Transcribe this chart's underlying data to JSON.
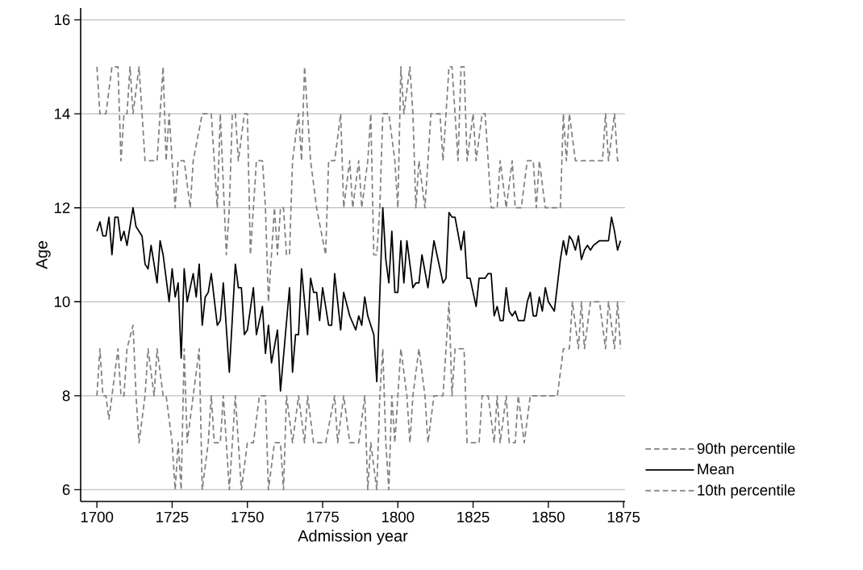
{
  "chart_data": {
    "type": "line",
    "xlabel": "Admission year",
    "ylabel": "Age",
    "xlim": [
      1694.6,
      1875.5
    ],
    "ylim": [
      5.75,
      16.25
    ],
    "xticks": [
      1700,
      1725,
      1750,
      1775,
      1800,
      1825,
      1850,
      1875
    ],
    "yticks": [
      6,
      8,
      10,
      12,
      14,
      16
    ],
    "grid": "y",
    "legend": "bottom right",
    "series": [
      {
        "name": "90th percentile",
        "color": "#808080",
        "line_style": "dashed",
        "x": [
          1700,
          1701,
          1702,
          1703,
          1705,
          1707,
          1708,
          1709,
          1710,
          1711,
          1712,
          1714,
          1715,
          1716,
          1718,
          1720,
          1721,
          1722,
          1723,
          1724,
          1725,
          1726,
          1727,
          1729,
          1731,
          1732,
          1735,
          1736,
          1738,
          1740,
          1741,
          1743,
          1744,
          1745,
          1746,
          1747,
          1749,
          1750,
          1751,
          1753,
          1755,
          1756,
          1757,
          1759,
          1760,
          1761,
          1762,
          1763,
          1764,
          1765,
          1767,
          1768,
          1769,
          1770,
          1771,
          1773,
          1776,
          1777,
          1779,
          1781,
          1782,
          1784,
          1785,
          1787,
          1788,
          1790,
          1791,
          1792,
          1793,
          1794,
          1795,
          1797,
          1799,
          1800,
          1801,
          1802,
          1804,
          1805,
          1806,
          1807,
          1809,
          1811,
          1812,
          1814,
          1815,
          1817,
          1818,
          1820,
          1821,
          1822,
          1823,
          1825,
          1826,
          1828,
          1829,
          1830,
          1831,
          1833,
          1834,
          1836,
          1838,
          1839,
          1841,
          1843,
          1845,
          1846,
          1847,
          1849,
          1852,
          1854,
          1855,
          1856,
          1857,
          1859,
          1861,
          1864,
          1865,
          1868,
          1869,
          1870,
          1872,
          1873,
          1874
        ],
        "values": [
          15,
          14,
          14,
          14,
          15,
          15,
          13,
          14,
          14,
          15,
          14,
          15,
          14,
          13,
          13,
          13,
          14,
          15,
          13,
          14,
          13,
          12,
          13,
          13,
          12,
          13,
          14,
          14,
          14,
          12,
          14,
          11,
          12,
          14,
          14,
          13,
          14,
          14,
          11,
          13,
          13,
          12,
          10,
          12,
          11,
          12,
          12,
          11,
          11,
          13,
          14,
          13,
          15,
          14,
          13,
          12,
          11,
          13,
          13,
          14,
          12,
          13,
          12,
          13,
          12,
          13,
          14,
          11,
          11,
          12,
          14,
          14,
          13,
          12,
          15,
          14,
          15,
          14,
          12,
          13,
          12,
          14,
          14,
          14,
          13,
          15,
          15,
          13,
          15,
          15,
          13,
          14,
          13,
          14,
          14,
          13,
          12,
          12,
          13,
          12,
          13,
          12,
          12,
          13,
          13,
          12,
          13,
          12,
          12,
          12,
          14,
          13,
          14,
          13,
          13,
          13,
          13,
          13,
          14,
          13,
          14,
          13,
          13
        ]
      },
      {
        "name": "Mean",
        "color": "#000000",
        "line_style": "solid",
        "x": [
          1700,
          1701,
          1702,
          1703,
          1704,
          1705,
          1706,
          1707,
          1708,
          1709,
          1710,
          1712,
          1713,
          1715,
          1716,
          1717,
          1718,
          1720,
          1721,
          1722,
          1724,
          1725,
          1726,
          1727,
          1728,
          1729,
          1730,
          1732,
          1733,
          1734,
          1735,
          1736,
          1737,
          1738,
          1740,
          1741,
          1742,
          1744,
          1746,
          1747,
          1748,
          1749,
          1750,
          1752,
          1753,
          1755,
          1756,
          1757,
          1758,
          1760,
          1761,
          1764,
          1765,
          1766,
          1767,
          1768,
          1770,
          1771,
          1772,
          1773,
          1774,
          1775,
          1777,
          1778,
          1779,
          1781,
          1782,
          1784,
          1786,
          1787,
          1788,
          1789,
          1790,
          1792,
          1793,
          1795,
          1796,
          1797,
          1798,
          1799,
          1800,
          1801,
          1802,
          1803,
          1805,
          1806,
          1807,
          1808,
          1810,
          1812,
          1815,
          1816,
          1817,
          1818,
          1819,
          1821,
          1822,
          1823,
          1824,
          1826,
          1827,
          1828,
          1829,
          1830,
          1831,
          1832,
          1833,
          1834,
          1835,
          1836,
          1837,
          1838,
          1839,
          1840,
          1842,
          1843,
          1844,
          1845,
          1846,
          1847,
          1848,
          1849,
          1850,
          1852,
          1854,
          1855,
          1856,
          1857,
          1858,
          1859,
          1860,
          1861,
          1862,
          1863,
          1864,
          1865,
          1867,
          1868,
          1869,
          1870,
          1871,
          1872,
          1873,
          1874
        ],
        "values": [
          11.5,
          11.7,
          11.4,
          11.4,
          11.8,
          11.0,
          11.8,
          11.8,
          11.3,
          11.5,
          11.2,
          12.0,
          11.6,
          11.4,
          10.8,
          10.7,
          11.2,
          10.4,
          11.3,
          11.0,
          10.0,
          10.7,
          10.1,
          10.4,
          8.8,
          10.7,
          10.0,
          10.6,
          10.1,
          10.8,
          9.5,
          10.1,
          10.2,
          10.6,
          9.5,
          9.6,
          10.4,
          8.5,
          10.8,
          10.3,
          10.3,
          9.3,
          9.4,
          10.3,
          9.3,
          9.9,
          8.9,
          9.5,
          8.7,
          9.4,
          8.1,
          10.3,
          8.5,
          9.3,
          9.3,
          10.7,
          9.3,
          10.5,
          10.2,
          10.2,
          9.6,
          10.3,
          9.5,
          9.5,
          10.6,
          9.4,
          10.2,
          9.7,
          9.4,
          9.7,
          9.5,
          10.1,
          9.7,
          9.3,
          8.3,
          12.0,
          10.9,
          10.4,
          11.5,
          10.2,
          10.2,
          11.3,
          10.4,
          11.3,
          10.3,
          10.4,
          10.4,
          11.0,
          10.3,
          11.3,
          10.4,
          10.5,
          11.9,
          11.8,
          11.8,
          11.1,
          11.5,
          10.5,
          10.5,
          9.9,
          10.5,
          10.5,
          10.5,
          10.6,
          10.6,
          9.7,
          9.9,
          9.6,
          9.6,
          10.3,
          9.8,
          9.7,
          9.8,
          9.6,
          9.6,
          10.0,
          10.2,
          9.7,
          9.7,
          10.1,
          9.8,
          10.3,
          10.0,
          9.8,
          10.9,
          11.3,
          11.0,
          11.4,
          11.3,
          11.1,
          11.4,
          10.9,
          11.1,
          11.2,
          11.1,
          11.2,
          11.3,
          11.3,
          11.3,
          11.3,
          11.8,
          11.5,
          11.1,
          11.3
        ]
      },
      {
        "name": "10th percentile",
        "color": "#808080",
        "line_style": "dashed",
        "x": [
          1700,
          1701,
          1702,
          1703,
          1704,
          1705,
          1707,
          1708,
          1709,
          1710,
          1712,
          1713,
          1714,
          1716,
          1717,
          1719,
          1720,
          1722,
          1723,
          1725,
          1726,
          1727,
          1728,
          1729,
          1730,
          1732,
          1734,
          1735,
          1737,
          1738,
          1739,
          1741,
          1742,
          1744,
          1745,
          1746,
          1747,
          1748,
          1750,
          1752,
          1754,
          1756,
          1757,
          1759,
          1761,
          1762,
          1763,
          1765,
          1767,
          1769,
          1770,
          1772,
          1774,
          1776,
          1779,
          1780,
          1782,
          1784,
          1787,
          1789,
          1790,
          1791,
          1793,
          1794,
          1795,
          1796,
          1797,
          1798,
          1799,
          1801,
          1803,
          1804,
          1805,
          1807,
          1809,
          1810,
          1812,
          1815,
          1817,
          1818,
          1819,
          1821,
          1822,
          1823,
          1825,
          1827,
          1828,
          1830,
          1832,
          1833,
          1834,
          1836,
          1837,
          1839,
          1840,
          1842,
          1844,
          1847,
          1851,
          1853,
          1855,
          1857,
          1858,
          1860,
          1861,
          1862,
          1864,
          1867,
          1869,
          1870,
          1872,
          1873,
          1874
        ],
        "values": [
          8,
          9,
          8,
          8,
          7.5,
          8,
          9,
          8,
          8,
          9,
          9.5,
          8,
          7,
          8,
          9,
          8,
          9,
          8,
          8,
          7,
          6,
          7,
          6,
          9,
          7,
          8,
          9,
          6,
          7,
          8,
          7,
          7,
          8,
          6,
          7,
          8,
          7,
          6,
          7,
          7,
          8,
          8,
          6,
          7,
          7,
          6,
          8,
          7,
          8,
          7,
          8,
          7,
          7,
          7,
          8,
          7,
          8,
          7,
          7,
          8,
          6,
          7,
          6,
          8,
          9,
          7,
          6,
          8,
          7,
          9,
          8,
          7,
          8,
          9,
          8,
          7,
          8,
          8,
          10,
          8,
          9,
          9,
          9,
          7,
          7,
          7,
          8,
          8,
          7,
          8,
          7,
          8,
          7,
          7,
          8,
          7,
          8,
          8,
          8,
          8,
          9,
          9,
          10,
          9,
          10,
          9,
          10,
          10,
          9,
          10,
          9,
          10,
          9
        ]
      }
    ]
  }
}
